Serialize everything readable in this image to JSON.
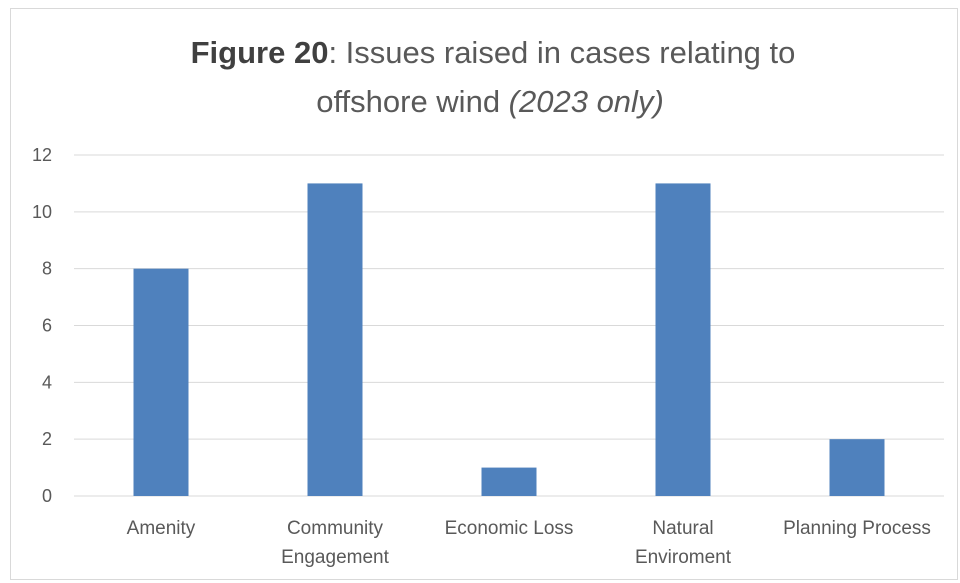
{
  "chart_data": {
    "type": "bar",
    "title_bold": "Figure 20",
    "title_rest": ": Issues raised in cases relating to",
    "title_line2": "offshore wind ",
    "title_italic": "(2023 only)",
    "categories": [
      [
        "Amenity"
      ],
      [
        "Community",
        "Engagement"
      ],
      [
        "Economic Loss"
      ],
      [
        "Natural",
        "Enviroment"
      ],
      [
        "Planning Process"
      ]
    ],
    "values": [
      8,
      11,
      1,
      11,
      2
    ],
    "yticks": [
      0,
      2,
      4,
      6,
      8,
      10,
      12
    ],
    "ylim": [
      0,
      12
    ],
    "grid": true,
    "bar_color": "#4f81bd",
    "grid_color": "#d9d9d9"
  }
}
